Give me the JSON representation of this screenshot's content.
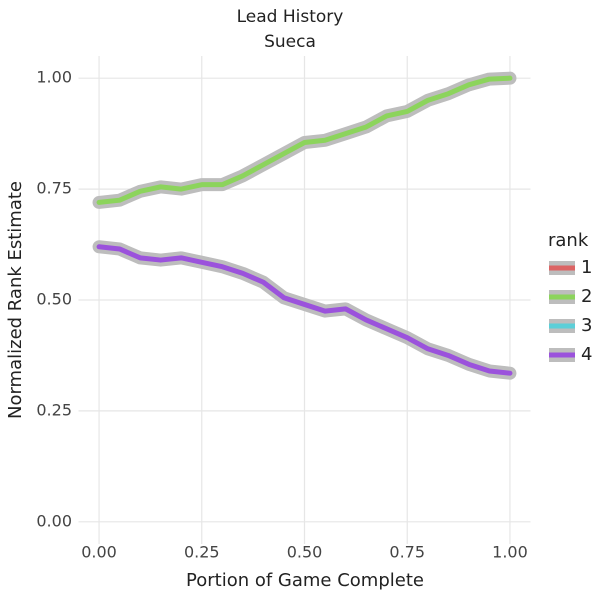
{
  "chart_data": {
    "type": "line",
    "title": "Lead History",
    "subtitle": "Sueca",
    "x_label": "Portion of Game Complete",
    "y_label": "Normalized Rank Estimate",
    "legend_title": "rank",
    "legend_position": "right",
    "grid": true,
    "x": [
      0,
      0.05,
      0.1,
      0.15,
      0.2,
      0.25,
      0.3,
      0.35,
      0.4,
      0.45,
      0.5,
      0.55,
      0.6,
      0.65,
      0.7,
      0.75,
      0.8,
      0.85,
      0.9,
      0.95,
      1.0
    ],
    "series": [
      {
        "name": "1",
        "color": "#dc6464",
        "values": [
          null,
          null,
          null,
          null,
          null,
          null,
          null,
          null,
          null,
          null,
          null,
          null,
          null,
          null,
          null,
          null,
          null,
          null,
          null,
          null,
          null
        ]
      },
      {
        "name": "2",
        "color": "#8cd45c",
        "values": [
          0.72,
          0.725,
          0.745,
          0.755,
          0.75,
          0.76,
          0.76,
          0.78,
          0.805,
          0.83,
          0.855,
          0.86,
          0.875,
          0.89,
          0.915,
          0.925,
          0.95,
          0.965,
          0.985,
          0.998,
          1.0
        ]
      },
      {
        "name": "3",
        "color": "#5ccfd8",
        "values": [
          null,
          null,
          null,
          null,
          null,
          null,
          null,
          null,
          null,
          null,
          null,
          null,
          null,
          null,
          null,
          null,
          null,
          null,
          null,
          null,
          null
        ]
      },
      {
        "name": "4",
        "color": "#9b52dc",
        "values": [
          0.62,
          0.615,
          0.595,
          0.59,
          0.595,
          0.585,
          0.575,
          0.56,
          0.54,
          0.505,
          0.49,
          0.475,
          0.48,
          0.455,
          0.435,
          0.415,
          0.39,
          0.375,
          0.355,
          0.34,
          0.335
        ]
      }
    ],
    "xlim": [
      -0.05,
      1.05
    ],
    "ylim": [
      -0.05,
      1.05
    ],
    "xticks": [
      {
        "value": 0,
        "label": "0.00"
      },
      {
        "value": 0.25,
        "label": "0.25"
      },
      {
        "value": 0.5,
        "label": "0.50"
      },
      {
        "value": 0.75,
        "label": "0.75"
      },
      {
        "value": 1,
        "label": "1.00"
      }
    ],
    "yticks": [
      {
        "value": 0,
        "label": "0.00"
      },
      {
        "value": 0.25,
        "label": "0.25"
      },
      {
        "value": 0.5,
        "label": "0.50"
      },
      {
        "value": 0.75,
        "label": "0.75"
      },
      {
        "value": 1,
        "label": "1.00"
      }
    ]
  }
}
